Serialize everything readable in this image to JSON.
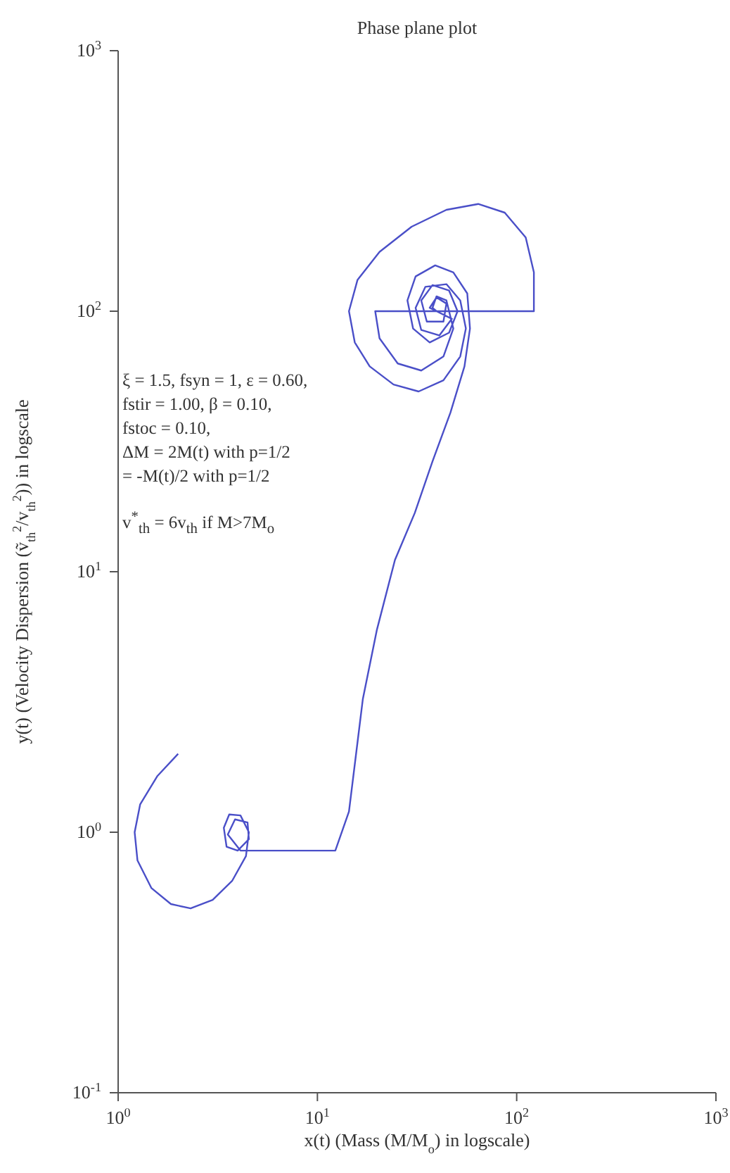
{
  "chart_data": {
    "type": "line",
    "title": "Phase plane plot",
    "xlabel": "x(t) (Mass (M/M$_{o}$) in logscale)",
    "ylabel": "y(t) (Velocity Dispersion (ṽ$_{th}$$^{2}$/v$_{th}$$^{2}$)) in logscale",
    "annotations": [
      "ξ = 1.5, fsyn = 1, ε = 0.60,",
      "fstir = 1.00, β = 0.10,",
      "fstoc = 0.10,",
      "ΔM = 2M(t) with p=1/2",
      "= -M(t)/2 with p=1/2",
      "v$^{*}$$_{th}$ = 6v$_{th}$ if M>7M$_{o}$"
    ],
    "log": "xy",
    "marker": "none",
    "line_style": "solid",
    "xlim": [
      1,
      1000
    ],
    "ylim": [
      0.1,
      1000
    ],
    "xticks": [
      {
        "value": 1,
        "label": "10$^{0}$"
      },
      {
        "value": 10,
        "label": "10$^{1}$"
      },
      {
        "value": 100,
        "label": "10$^{2}$"
      },
      {
        "value": 1000,
        "label": "10$^{3}$"
      }
    ],
    "yticks": [
      {
        "value": 0.1,
        "label": "10$^{-1}$"
      },
      {
        "value": 1,
        "label": "10$^{0}$"
      },
      {
        "value": 10,
        "label": "10$^{1}$"
      },
      {
        "value": 100,
        "label": "10$^{2}$"
      },
      {
        "value": 1000,
        "label": "10$^{3}$"
      }
    ],
    "series": [
      {
        "color": "#4a4fc8",
        "x": [
          2.0,
          1.57,
          1.29,
          1.21,
          1.25,
          1.47,
          1.84,
          2.31,
          2.98,
          3.73,
          4.38,
          4.53,
          4.11,
          3.61,
          3.39,
          3.5,
          3.98,
          4.53,
          4.46,
          3.86,
          3.55,
          4.11,
          12.3,
          14.4,
          16.9,
          19.9,
          24.5,
          30.8,
          37.8,
          46.5,
          54.7,
          58.3,
          56.5,
          48.1,
          39.0,
          31.1,
          28.3,
          30.2,
          36.6,
          45.8,
          50.5,
          45.8,
          37.8,
          33.2,
          35.4,
          42.9,
          44.4,
          39.6,
          36.6,
          39.6,
          122,
          122,
          111,
          87.1,
          64.1,
          44.4,
          29.7,
          20.5,
          15.9,
          14.4,
          15.4,
          18.3,
          24.1,
          32.2,
          42.9,
          52.1,
          55.6,
          52.1,
          44.4,
          34.8,
          31.1,
          33.2,
          40.9,
          47.3,
          39.6,
          19.5,
          20.5,
          25.3,
          33.2,
          42.9,
          48.1,
          44.4,
          39.6,
          37.8,
          39.6
        ],
        "values": [
          2.0,
          1.64,
          1.28,
          1.0,
          0.78,
          0.61,
          0.53,
          0.51,
          0.55,
          0.65,
          0.81,
          1.0,
          1.16,
          1.17,
          1.04,
          0.88,
          0.85,
          0.94,
          1.09,
          1.12,
          0.98,
          0.85,
          0.85,
          1.2,
          3.24,
          6.0,
          11.1,
          16.8,
          26.5,
          40.8,
          61.4,
          85.8,
          117,
          141,
          150,
          136,
          110,
          85.8,
          75.9,
          82.7,
          100,
          120,
          126,
          110,
          91.2,
          91.2,
          107,
          113,
          103,
          100,
          100,
          141,
          192,
          239,
          258,
          245,
          211,
          169,
          132,
          100,
          75.9,
          61.4,
          52.3,
          49.2,
          54.3,
          67.0,
          85.8,
          110,
          127,
          124,
          103,
          84.7,
          80.7,
          93.5,
          100,
          100,
          78.7,
          63.0,
          59.2,
          67.0,
          85.8,
          110,
          114,
          103,
          100
        ]
      }
    ]
  }
}
